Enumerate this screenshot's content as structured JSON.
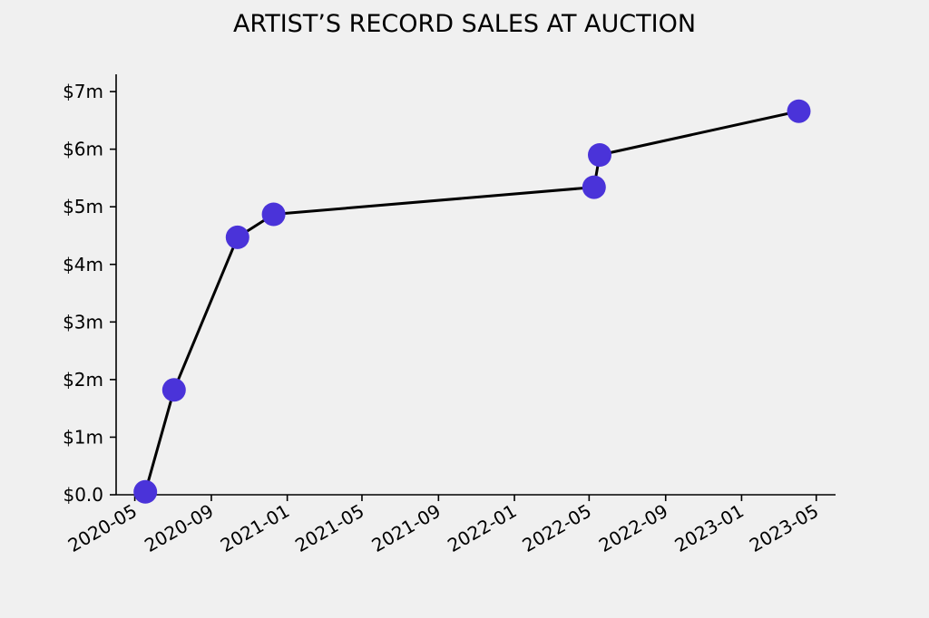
{
  "chart_data": {
    "type": "line",
    "title": "ARTIST’S RECORD SALES AT AUCTION",
    "xlabel": "",
    "ylabel": "",
    "x_axis_type": "date",
    "xlim": [
      "2020-04-01",
      "2023-06-01"
    ],
    "ylim": [
      0,
      7.3
    ],
    "x_ticks": [
      "2020-05",
      "2020-09",
      "2021-01",
      "2021-05",
      "2021-09",
      "2022-01",
      "2022-05",
      "2022-09",
      "2023-01",
      "2023-05"
    ],
    "y_ticks": [
      {
        "value": 0,
        "label": "$0.0"
      },
      {
        "value": 1,
        "label": "$1m"
      },
      {
        "value": 2,
        "label": "$2m"
      },
      {
        "value": 3,
        "label": "$3m"
      },
      {
        "value": 4,
        "label": "$4m"
      },
      {
        "value": 5,
        "label": "$5m"
      },
      {
        "value": 6,
        "label": "$6m"
      },
      {
        "value": 7,
        "label": "$7m"
      }
    ],
    "grid": false,
    "legend": "none",
    "series": [
      {
        "x": [
          "2020-05-18",
          "2020-07-03",
          "2020-10-13",
          "2020-12-10",
          "2022-05-09",
          "2022-05-18",
          "2023-04-03"
        ],
        "y": [
          0.05,
          1.82,
          4.47,
          4.87,
          5.34,
          5.9,
          6.66
        ],
        "line_color": "#000000",
        "marker_color": "#4a33d9"
      }
    ]
  }
}
